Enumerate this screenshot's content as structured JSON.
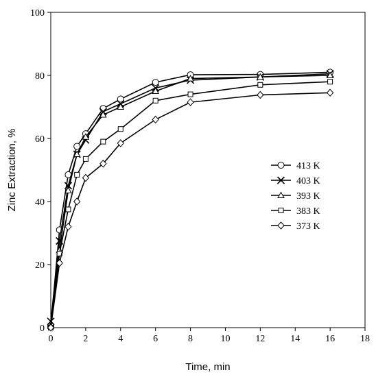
{
  "chart_data": {
    "type": "line",
    "xlabel": "Time, min",
    "ylabel": "Zinc Extraction, %",
    "xlim": [
      0,
      18
    ],
    "ylim": [
      0,
      100
    ],
    "xticks": [
      "0",
      "2",
      "4",
      "6",
      "8",
      "10",
      "12",
      "14",
      "16",
      "18"
    ],
    "yticks": [
      "0",
      "20",
      "40",
      "60",
      "80",
      "100"
    ],
    "grid": false,
    "legend_position": "right",
    "x": [
      0,
      0.5,
      1,
      1.5,
      2,
      3,
      4,
      6,
      8,
      12,
      16
    ],
    "series": [
      {
        "name": "413 K",
        "marker": "circle",
        "values": [
          0.5,
          31,
          48.5,
          57.5,
          61.5,
          69.5,
          72.5,
          77.8,
          80.2,
          80.3,
          81
        ]
      },
      {
        "name": "403 K",
        "marker": "x",
        "values": [
          2,
          27.5,
          45,
          55,
          59.5,
          68.5,
          71,
          76,
          78.5,
          79.5,
          80.5
        ]
      },
      {
        "name": "393 K",
        "marker": "triangle",
        "values": [
          0.5,
          24.5,
          43.5,
          55,
          60.5,
          67.5,
          70,
          75,
          79,
          79.5,
          80
        ]
      },
      {
        "name": "383 K",
        "marker": "square",
        "values": [
          0,
          23.5,
          37.5,
          48.5,
          53.5,
          59,
          63,
          72,
          74,
          77,
          78
        ]
      },
      {
        "name": "373 K",
        "marker": "diamond",
        "values": [
          0,
          20.5,
          32,
          40,
          47.5,
          52,
          58.5,
          66,
          71.5,
          73.8,
          74.5
        ]
      }
    ]
  }
}
